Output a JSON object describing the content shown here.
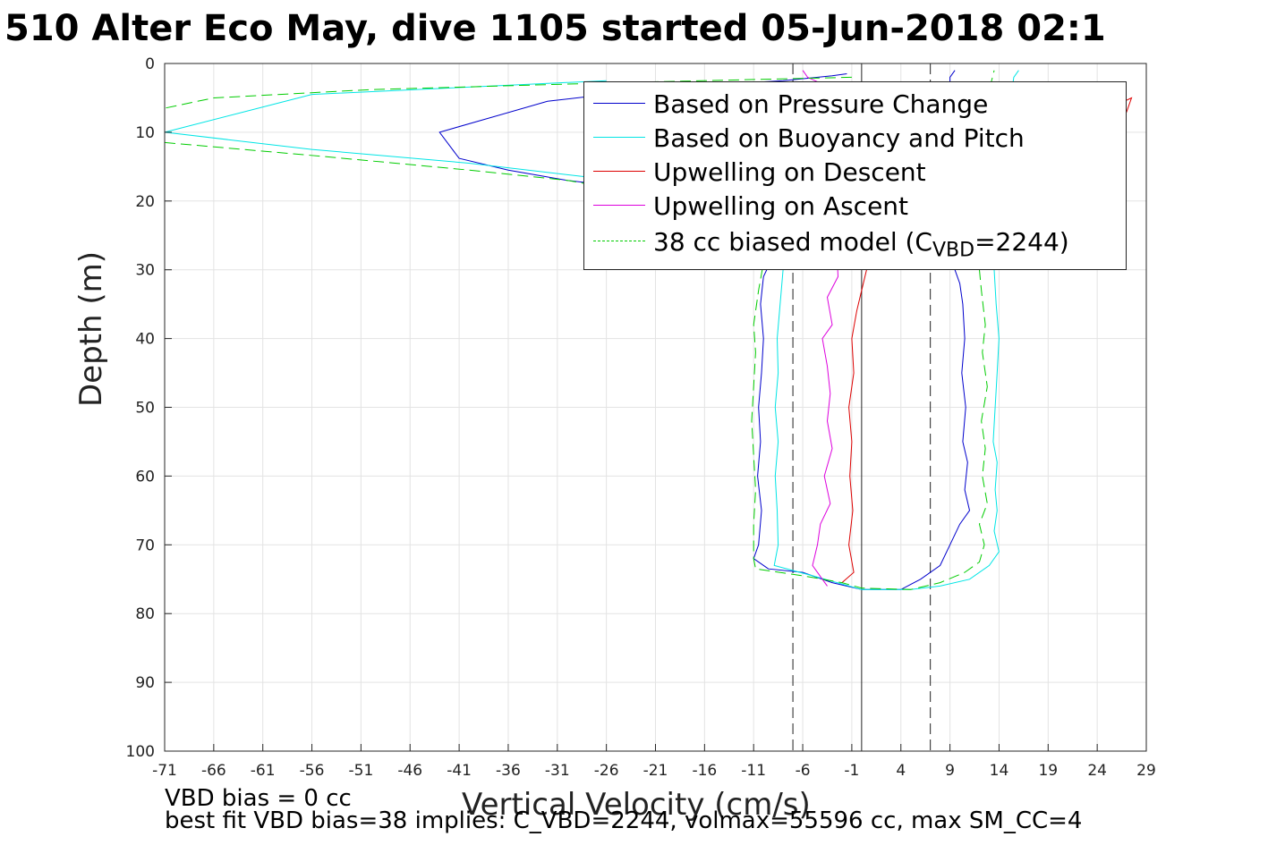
{
  "title": "510 Alter Eco May, dive 1105 started 05-Jun-2018 02:1",
  "footer": {
    "line1": "VBD bias = 0 cc",
    "line2": "best fit VBD bias=38 implies: C_VBD=2244, volmax=55596 cc, max SM_CC=4"
  },
  "chart_data": {
    "type": "line",
    "xlabel": "Vertical Velocity (cm/s)",
    "ylabel": "Depth (m)",
    "xlim": [
      -71,
      29
    ],
    "ylim": [
      0,
      100
    ],
    "y_reversed": true,
    "grid": true,
    "xticks": [
      -71,
      -66,
      -61,
      -56,
      -51,
      -46,
      -41,
      -36,
      -31,
      -26,
      -21,
      -16,
      -11,
      -6,
      -1,
      4,
      9,
      14,
      19,
      24,
      29
    ],
    "yticks": [
      0,
      10,
      20,
      30,
      40,
      50,
      60,
      70,
      80,
      90,
      100
    ],
    "vertical_lines": [
      {
        "x": -7,
        "style": "dashed",
        "color": "#222222"
      },
      {
        "x": 0,
        "style": "solid",
        "color": "#222222"
      },
      {
        "x": 7,
        "style": "dashed",
        "color": "#222222"
      }
    ],
    "legend_position": "top-right",
    "series": [
      {
        "name": "Based on Pressure Change",
        "color": "#0000cc",
        "style": "solid",
        "points": [
          [
            -1.5,
            1.5
          ],
          [
            -3,
            1.8
          ],
          [
            -8,
            2.5
          ],
          [
            -20,
            3.5
          ],
          [
            -32,
            5.5
          ],
          [
            -43,
            10
          ],
          [
            -41,
            13.8
          ],
          [
            -36,
            15.5
          ],
          [
            -30,
            17
          ],
          [
            -24,
            18
          ],
          [
            -17,
            19
          ],
          [
            -12,
            22
          ],
          [
            -9.5,
            25
          ],
          [
            -9,
            28
          ],
          [
            -10,
            31
          ],
          [
            -10.3,
            35
          ],
          [
            -10,
            40
          ],
          [
            -10.2,
            45
          ],
          [
            -10.5,
            50
          ],
          [
            -10.3,
            55
          ],
          [
            -10.6,
            60
          ],
          [
            -10.2,
            65
          ],
          [
            -10.5,
            70
          ],
          [
            -11,
            72
          ],
          [
            -9.5,
            73.5
          ],
          [
            -6,
            74
          ],
          [
            -3,
            75.5
          ],
          [
            0,
            76.5
          ],
          [
            4,
            76.5
          ],
          [
            6,
            75
          ],
          [
            8,
            73
          ],
          [
            9,
            70
          ],
          [
            10,
            67
          ],
          [
            11,
            65
          ],
          [
            10.5,
            62
          ],
          [
            10.8,
            58
          ],
          [
            10.3,
            55
          ],
          [
            10.6,
            50
          ],
          [
            10.2,
            45
          ],
          [
            10.5,
            40
          ],
          [
            10.3,
            35
          ],
          [
            10,
            32
          ],
          [
            9.5,
            30
          ],
          [
            9,
            26
          ],
          [
            9.2,
            20
          ],
          [
            9.1,
            15
          ],
          [
            9.2,
            10
          ],
          [
            9,
            5
          ],
          [
            9,
            2
          ],
          [
            9.5,
            1
          ]
        ]
      },
      {
        "name": "Based on Buoyancy and Pitch",
        "color": "#00e5e5",
        "style": "solid",
        "points": [
          [
            -26,
            2.5
          ],
          [
            -56,
            4.5
          ],
          [
            -71,
            10
          ],
          [
            -56,
            12.5
          ],
          [
            -40,
            14.5
          ],
          [
            -28,
            16.5
          ],
          [
            -18,
            19
          ],
          [
            -12,
            23
          ],
          [
            -8.5,
            27
          ],
          [
            -8,
            30
          ],
          [
            -8.3,
            35
          ],
          [
            -8.6,
            40
          ],
          [
            -8.5,
            45
          ],
          [
            -8.8,
            50
          ],
          [
            -8.5,
            55
          ],
          [
            -8.8,
            60
          ],
          [
            -8.6,
            65
          ],
          [
            -8.5,
            70
          ],
          [
            -8.9,
            73
          ],
          [
            -5,
            74.5
          ],
          [
            0,
            76.5
          ],
          [
            5,
            76.5
          ],
          [
            8,
            76
          ],
          [
            11,
            75
          ],
          [
            13,
            73
          ],
          [
            14,
            71
          ],
          [
            13.5,
            68
          ],
          [
            13.8,
            65
          ],
          [
            13.6,
            62
          ],
          [
            13.8,
            58
          ],
          [
            13.4,
            55
          ],
          [
            13.6,
            50
          ],
          [
            13.8,
            45
          ],
          [
            14,
            40
          ],
          [
            13.7,
            35
          ],
          [
            13.5,
            30
          ],
          [
            13,
            28
          ],
          [
            13.5,
            25
          ],
          [
            14,
            20
          ],
          [
            14.5,
            15
          ],
          [
            15,
            10
          ],
          [
            15.2,
            5
          ],
          [
            15.5,
            2
          ],
          [
            16,
            1
          ]
        ]
      },
      {
        "name": "Upwelling on Descent",
        "color": "#dd0000",
        "style": "solid",
        "points": [
          [
            20,
            10
          ],
          [
            26,
            6
          ],
          [
            27.5,
            5
          ],
          [
            27,
            7
          ],
          [
            26,
            10
          ],
          [
            24,
            14
          ],
          [
            20,
            18
          ],
          [
            14,
            22
          ],
          [
            6,
            25
          ],
          [
            2,
            27
          ],
          [
            0.5,
            30
          ],
          [
            0,
            33
          ],
          [
            -0.5,
            36
          ],
          [
            -1,
            40
          ],
          [
            -0.8,
            45
          ],
          [
            -1.3,
            50
          ],
          [
            -1,
            55
          ],
          [
            -1.2,
            60
          ],
          [
            -0.9,
            65
          ],
          [
            -1.3,
            70
          ],
          [
            -0.8,
            74
          ],
          [
            -2,
            75.5
          ]
        ]
      },
      {
        "name": "Upwelling on Ascent",
        "color": "#dd00dd",
        "style": "solid",
        "points": [
          [
            -6,
            1
          ],
          [
            -5.5,
            2
          ],
          [
            -4,
            3
          ],
          [
            -2.5,
            5
          ],
          [
            -2,
            8
          ],
          [
            -1.8,
            12
          ],
          [
            -2,
            18
          ],
          [
            -2.2,
            24
          ],
          [
            -2.5,
            28
          ],
          [
            -2.4,
            31
          ],
          [
            -3.5,
            34
          ],
          [
            -3,
            38
          ],
          [
            -4,
            40
          ],
          [
            -3.5,
            44
          ],
          [
            -3.2,
            48
          ],
          [
            -3.5,
            52
          ],
          [
            -3,
            56
          ],
          [
            -3.8,
            60
          ],
          [
            -3.2,
            64
          ],
          [
            -4.2,
            67
          ],
          [
            -4.5,
            70
          ],
          [
            -5,
            73
          ],
          [
            -4,
            75
          ],
          [
            -3.5,
            76
          ]
        ]
      },
      {
        "name": "38 cc biased model (C_VBD=2244)",
        "color": "#00cc00",
        "style": "dashed",
        "points": [
          [
            -1,
            2
          ],
          [
            -25,
            2.8
          ],
          [
            -50,
            3.8
          ],
          [
            -66,
            5
          ],
          [
            -71,
            6.5
          ]
        ]
      },
      {
        "name": "",
        "color": "#00cc00",
        "style": "dashed",
        "points": [
          [
            -71,
            11.5
          ],
          [
            -55,
            13.5
          ],
          [
            -40,
            15.5
          ],
          [
            -30,
            17
          ],
          [
            -22,
            19
          ],
          [
            -15,
            21
          ],
          [
            -11,
            23
          ],
          [
            -10,
            26
          ],
          [
            -10,
            29
          ],
          [
            -10.5,
            33
          ],
          [
            -11,
            38
          ],
          [
            -10.8,
            42
          ],
          [
            -11,
            47
          ],
          [
            -11.2,
            52
          ],
          [
            -11,
            57
          ],
          [
            -10.8,
            62
          ],
          [
            -11,
            67
          ],
          [
            -11,
            72
          ],
          [
            -10.8,
            73.5
          ],
          [
            -6,
            74.5
          ],
          [
            -2,
            75.5
          ],
          [
            0,
            76.3
          ],
          [
            5,
            76.5
          ],
          [
            8,
            75.5
          ],
          [
            10.5,
            74
          ],
          [
            12,
            72.5
          ],
          [
            12.5,
            70
          ],
          [
            12,
            67
          ],
          [
            12.8,
            64
          ],
          [
            12.3,
            60
          ],
          [
            12.6,
            56
          ],
          [
            12.2,
            52
          ],
          [
            12.8,
            47
          ],
          [
            12.3,
            42
          ],
          [
            12.6,
            38
          ],
          [
            12.2,
            33
          ],
          [
            12,
            30
          ],
          [
            11.5,
            26
          ],
          [
            11.8,
            20
          ],
          [
            12,
            15
          ],
          [
            12.3,
            10
          ],
          [
            12.8,
            5
          ],
          [
            13.5,
            1
          ]
        ]
      }
    ]
  }
}
